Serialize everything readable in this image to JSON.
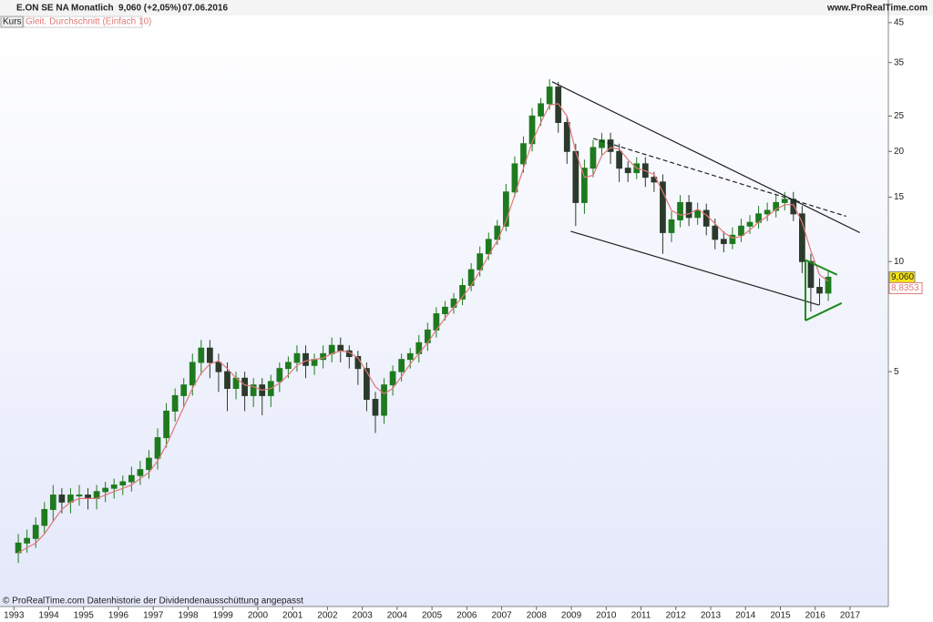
{
  "chart_data": {
    "type": "candlestick",
    "header": {
      "symbol": "E.ON SE NA",
      "period": "Monatlich",
      "quote": "9,060 (+2,05%)",
      "date": "07.06.2016",
      "site": "www.ProRealTime.com",
      "panel": "Kurs"
    },
    "note": "© ProRealTime.com Datenhistorie der Dividendenausschüttung angepasst",
    "log_scale": true,
    "up_color": "#1f7a1f",
    "down_color": "#2b3a2b",
    "xlim": [
      1992.6,
      2018.1
    ],
    "xticks": [
      1993,
      1994,
      1995,
      1996,
      1997,
      1998,
      1999,
      2000,
      2001,
      2002,
      2003,
      2004,
      2005,
      2006,
      2007,
      2008,
      2009,
      2010,
      2011,
      2012,
      2013,
      2014,
      2015,
      2016,
      2017
    ],
    "ylim": [
      1.14,
      46.8
    ],
    "yticks": [
      5,
      10,
      15,
      20,
      25,
      35,
      45
    ],
    "x": [
      1993.125,
      1993.375,
      1993.625,
      1993.875,
      1994.125,
      1994.375,
      1994.625,
      1994.875,
      1995.125,
      1995.375,
      1995.625,
      1995.875,
      1996.125,
      1996.375,
      1996.625,
      1996.875,
      1997.125,
      1997.375,
      1997.625,
      1997.875,
      1998.125,
      1998.375,
      1998.625,
      1998.875,
      1999.125,
      1999.375,
      1999.625,
      1999.875,
      2000.125,
      2000.375,
      2000.625,
      2000.875,
      2001.125,
      2001.375,
      2001.625,
      2001.875,
      2002.125,
      2002.375,
      2002.625,
      2002.875,
      2003.125,
      2003.375,
      2003.625,
      2003.875,
      2004.125,
      2004.375,
      2004.625,
      2004.875,
      2005.125,
      2005.375,
      2005.625,
      2005.875,
      2006.125,
      2006.375,
      2006.625,
      2006.875,
      2007.125,
      2007.375,
      2007.625,
      2007.875,
      2008.125,
      2008.375,
      2008.625,
      2008.875,
      2009.125,
      2009.375,
      2009.625,
      2009.875,
      2010.125,
      2010.375,
      2010.625,
      2010.875,
      2011.125,
      2011.375,
      2011.625,
      2011.875,
      2012.125,
      2012.375,
      2012.625,
      2012.875,
      2013.125,
      2013.375,
      2013.625,
      2013.875,
      2014.125,
      2014.375,
      2014.625,
      2014.875,
      2015.125,
      2015.375,
      2015.625,
      2015.875,
      2016.125,
      2016.375
    ],
    "open": [
      1.6,
      1.7,
      1.75,
      1.9,
      2.1,
      2.3,
      2.2,
      2.3,
      2.3,
      2.25,
      2.35,
      2.4,
      2.45,
      2.5,
      2.6,
      2.7,
      2.9,
      3.3,
      3.9,
      4.3,
      4.6,
      5.3,
      5.8,
      5.3,
      5.0,
      4.5,
      4.8,
      4.3,
      4.6,
      4.3,
      4.7,
      5.1,
      5.3,
      5.6,
      5.2,
      5.4,
      5.6,
      5.9,
      5.7,
      5.5,
      5.1,
      4.2,
      3.8,
      4.6,
      5.0,
      5.4,
      5.6,
      6.0,
      6.5,
      7.2,
      7.5,
      7.9,
      8.6,
      9.5,
      10.5,
      11.5,
      12.5,
      15.5,
      18.5,
      21,
      25,
      27,
      30,
      24,
      20,
      14.5,
      18,
      20.5,
      21.5,
      20,
      18,
      17.5,
      18.5,
      17,
      16.5,
      12,
      13,
      14.5,
      13.2,
      13.8,
      12.5,
      11.5,
      11.2,
      11.8,
      12.5,
      12.8,
      13.5,
      13.8,
      14.5,
      14.8,
      13.5,
      10,
      8.5,
      8.2
    ],
    "high": [
      1.8,
      1.85,
      2.0,
      2.2,
      2.45,
      2.4,
      2.4,
      2.45,
      2.4,
      2.45,
      2.5,
      2.55,
      2.6,
      2.75,
      2.85,
      3.05,
      3.5,
      4.1,
      4.5,
      4.8,
      5.6,
      6.1,
      6.1,
      5.6,
      5.3,
      5.0,
      5.0,
      4.8,
      4.8,
      4.9,
      5.3,
      5.5,
      5.9,
      5.9,
      5.6,
      5.9,
      6.2,
      6.2,
      5.9,
      5.7,
      5.3,
      4.4,
      4.8,
      5.2,
      5.6,
      5.8,
      6.3,
      6.8,
      7.5,
      7.8,
      8.2,
      9.0,
      9.9,
      11,
      12,
      13,
      16.3,
      19.4,
      22,
      26.3,
      28,
      31.5,
      31,
      25,
      21,
      19,
      21.5,
      22.5,
      22.5,
      21,
      18.8,
      19.3,
      19.3,
      17.6,
      17.3,
      13.7,
      15.2,
      15.2,
      14.5,
      14.4,
      13.1,
      12.1,
      12.4,
      13.1,
      13.4,
      14.2,
      14.5,
      15.2,
      15.5,
      15.5,
      14.2,
      10.5,
      9.0,
      9.5
    ],
    "low": [
      1.5,
      1.6,
      1.65,
      1.8,
      1.95,
      2.05,
      2.05,
      2.15,
      2.1,
      2.1,
      2.2,
      2.25,
      2.3,
      2.35,
      2.45,
      2.55,
      2.7,
      3.1,
      3.65,
      4.0,
      4.3,
      4.9,
      4.8,
      4.4,
      3.9,
      4.2,
      3.9,
      4.0,
      3.8,
      4.0,
      4.4,
      4.8,
      5.0,
      4.8,
      4.9,
      5.1,
      5.3,
      5.3,
      5.1,
      4.6,
      3.9,
      3.4,
      3.6,
      4.3,
      4.7,
      5.1,
      5.3,
      5.7,
      6.2,
      6.9,
      7.2,
      7.6,
      8.3,
      9.1,
      10.1,
      11.1,
      12.1,
      15,
      17.5,
      20,
      23.5,
      26,
      22.5,
      18.5,
      12.5,
      13.5,
      17,
      19.5,
      18.5,
      16.5,
      16.5,
      16.8,
      16,
      15.5,
      10.5,
      11.3,
      12.4,
      12.5,
      12.6,
      11.8,
      10.8,
      10.6,
      10.8,
      11.3,
      11.9,
      12.3,
      12.9,
      13.2,
      13.8,
      12.9,
      9.3,
      7.3,
      7.6,
      7.8
    ],
    "close": [
      1.7,
      1.75,
      1.9,
      2.1,
      2.3,
      2.2,
      2.3,
      2.3,
      2.25,
      2.35,
      2.4,
      2.45,
      2.5,
      2.6,
      2.7,
      2.9,
      3.3,
      3.9,
      4.3,
      4.6,
      5.3,
      5.8,
      5.3,
      5.0,
      4.5,
      4.8,
      4.3,
      4.6,
      4.3,
      4.7,
      5.1,
      5.3,
      5.6,
      5.2,
      5.4,
      5.6,
      5.9,
      5.7,
      5.5,
      5.1,
      4.2,
      3.8,
      4.6,
      5.0,
      5.4,
      5.6,
      6.0,
      6.5,
      7.2,
      7.5,
      7.9,
      8.6,
      9.5,
      10.5,
      11.5,
      12.5,
      15.5,
      18.5,
      21,
      25,
      27,
      30,
      24,
      20,
      14.5,
      18,
      20.5,
      21.5,
      20,
      18,
      17.5,
      18.5,
      17,
      16.5,
      12,
      13,
      14.5,
      13.2,
      13.8,
      12.5,
      11.5,
      11.2,
      11.8,
      12.5,
      12.8,
      13.5,
      13.8,
      14.5,
      14.8,
      13.5,
      10,
      8.5,
      8.2,
      9.06
    ],
    "price_label": {
      "value": 9.06,
      "label": "9,060"
    },
    "ma": {
      "name": "Gleit. Durchschnitt (Einfach 10)",
      "color": "#e07878",
      "values": [
        1.6,
        1.65,
        1.7,
        1.8,
        1.95,
        2.1,
        2.2,
        2.25,
        2.25,
        2.25,
        2.3,
        2.35,
        2.4,
        2.45,
        2.55,
        2.65,
        2.85,
        3.15,
        3.55,
        4.0,
        4.5,
        4.95,
        5.25,
        5.35,
        5.1,
        4.8,
        4.6,
        4.55,
        4.45,
        4.5,
        4.65,
        4.9,
        5.2,
        5.35,
        5.4,
        5.45,
        5.6,
        5.7,
        5.65,
        5.45,
        5.0,
        4.55,
        4.35,
        4.5,
        4.85,
        5.25,
        5.6,
        6.0,
        6.5,
        7.0,
        7.5,
        8.0,
        8.6,
        9.4,
        10.4,
        11.4,
        12.9,
        15.2,
        18,
        21.2,
        24,
        26.8,
        27,
        25,
        20,
        17,
        17.2,
        19.5,
        20.5,
        20.3,
        19,
        18,
        17.7,
        17.3,
        15.5,
        13.8,
        13.4,
        13.5,
        13.9,
        13.4,
        12.7,
        12,
        11.6,
        11.7,
        12.2,
        12.8,
        13.3,
        13.9,
        14.3,
        14.3,
        12.8,
        10.7,
        9.2,
        8.8353
      ],
      "last_label": {
        "value": 8.8353,
        "label": "8,8353"
      }
    },
    "trendlines": [
      {
        "x": [
          2008.45,
          2017.28
        ],
        "y": [
          31,
          12.0
        ],
        "color": "#222222",
        "dashed": false
      },
      {
        "x": [
          2009.63,
          2016.89
        ],
        "y": [
          21.7,
          13.3
        ],
        "color": "#222222",
        "dashed": true
      },
      {
        "x": [
          2008.98,
          2016.11
        ],
        "y": [
          12.1,
          7.6
        ],
        "color": "#222222",
        "dashed": false
      },
      {
        "x": [
          2015.72,
          2016.63
        ],
        "y": [
          10.1,
          9.2
        ],
        "color": "#1a8a1a",
        "dashed": false
      },
      {
        "x": [
          2015.72,
          2016.76
        ],
        "y": [
          6.9,
          7.7
        ],
        "color": "#1a8a1a",
        "dashed": false
      },
      {
        "x": [
          2015.72,
          2015.72
        ],
        "y": [
          10.1,
          6.9
        ],
        "color": "#1a8a1a",
        "dashed": false
      }
    ]
  }
}
